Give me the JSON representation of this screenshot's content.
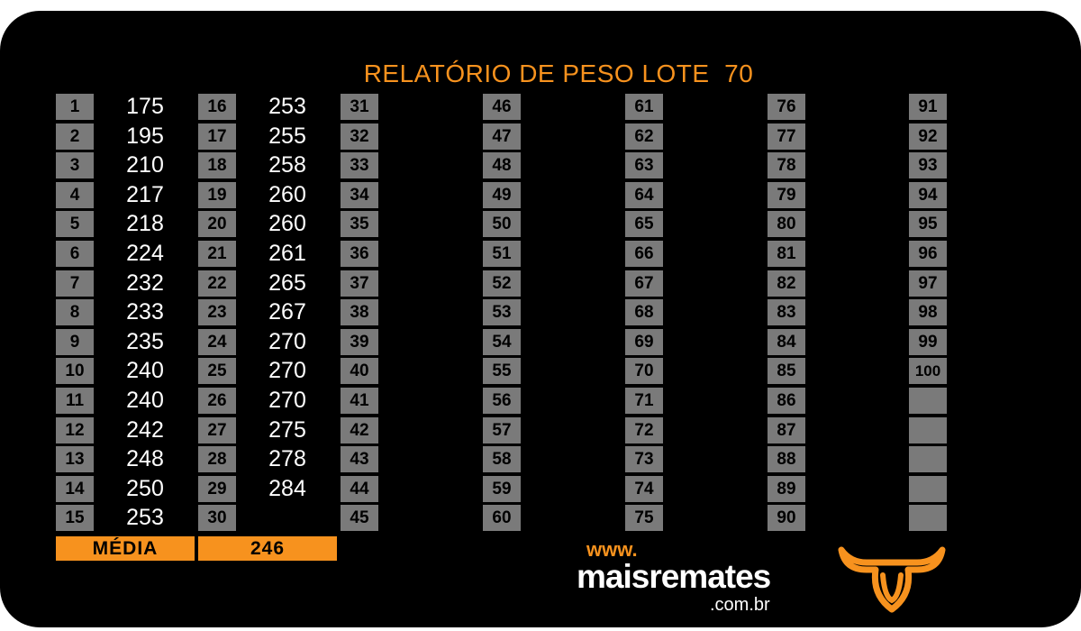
{
  "title": "RELATÓRIO DE PESO LOTE  70",
  "columns": [
    {
      "rows": [
        {
          "n": "1",
          "w": "175"
        },
        {
          "n": "2",
          "w": "195"
        },
        {
          "n": "3",
          "w": "210"
        },
        {
          "n": "4",
          "w": "217"
        },
        {
          "n": "5",
          "w": "218"
        },
        {
          "n": "6",
          "w": "224"
        },
        {
          "n": "7",
          "w": "232"
        },
        {
          "n": "8",
          "w": "233"
        },
        {
          "n": "9",
          "w": "235"
        },
        {
          "n": "10",
          "w": "240"
        },
        {
          "n": "11",
          "w": "240"
        },
        {
          "n": "12",
          "w": "242"
        },
        {
          "n": "13",
          "w": "248"
        },
        {
          "n": "14",
          "w": "250"
        },
        {
          "n": "15",
          "w": "253"
        }
      ]
    },
    {
      "rows": [
        {
          "n": "16",
          "w": "253"
        },
        {
          "n": "17",
          "w": "255"
        },
        {
          "n": "18",
          "w": "258"
        },
        {
          "n": "19",
          "w": "260"
        },
        {
          "n": "20",
          "w": "260"
        },
        {
          "n": "21",
          "w": "261"
        },
        {
          "n": "22",
          "w": "265"
        },
        {
          "n": "23",
          "w": "267"
        },
        {
          "n": "24",
          "w": "270"
        },
        {
          "n": "25",
          "w": "270"
        },
        {
          "n": "26",
          "w": "270"
        },
        {
          "n": "27",
          "w": "275"
        },
        {
          "n": "28",
          "w": "278"
        },
        {
          "n": "29",
          "w": "284"
        },
        {
          "n": "30",
          "w": ""
        }
      ]
    },
    {
      "rows": [
        {
          "n": "31",
          "w": ""
        },
        {
          "n": "32",
          "w": ""
        },
        {
          "n": "33",
          "w": ""
        },
        {
          "n": "34",
          "w": ""
        },
        {
          "n": "35",
          "w": ""
        },
        {
          "n": "36",
          "w": ""
        },
        {
          "n": "37",
          "w": ""
        },
        {
          "n": "38",
          "w": ""
        },
        {
          "n": "39",
          "w": ""
        },
        {
          "n": "40",
          "w": ""
        },
        {
          "n": "41",
          "w": ""
        },
        {
          "n": "42",
          "w": ""
        },
        {
          "n": "43",
          "w": ""
        },
        {
          "n": "44",
          "w": ""
        },
        {
          "n": "45",
          "w": ""
        }
      ]
    },
    {
      "rows": [
        {
          "n": "46",
          "w": ""
        },
        {
          "n": "47",
          "w": ""
        },
        {
          "n": "48",
          "w": ""
        },
        {
          "n": "49",
          "w": ""
        },
        {
          "n": "50",
          "w": ""
        },
        {
          "n": "51",
          "w": ""
        },
        {
          "n": "52",
          "w": ""
        },
        {
          "n": "53",
          "w": ""
        },
        {
          "n": "54",
          "w": ""
        },
        {
          "n": "55",
          "w": ""
        },
        {
          "n": "56",
          "w": ""
        },
        {
          "n": "57",
          "w": ""
        },
        {
          "n": "58",
          "w": ""
        },
        {
          "n": "59",
          "w": ""
        },
        {
          "n": "60",
          "w": ""
        }
      ]
    },
    {
      "rows": [
        {
          "n": "61",
          "w": ""
        },
        {
          "n": "62",
          "w": ""
        },
        {
          "n": "63",
          "w": ""
        },
        {
          "n": "64",
          "w": ""
        },
        {
          "n": "65",
          "w": ""
        },
        {
          "n": "66",
          "w": ""
        },
        {
          "n": "67",
          "w": ""
        },
        {
          "n": "68",
          "w": ""
        },
        {
          "n": "69",
          "w": ""
        },
        {
          "n": "70",
          "w": ""
        },
        {
          "n": "71",
          "w": ""
        },
        {
          "n": "72",
          "w": ""
        },
        {
          "n": "73",
          "w": ""
        },
        {
          "n": "74",
          "w": ""
        },
        {
          "n": "75",
          "w": ""
        }
      ]
    },
    {
      "rows": [
        {
          "n": "76",
          "w": ""
        },
        {
          "n": "77",
          "w": ""
        },
        {
          "n": "78",
          "w": ""
        },
        {
          "n": "79",
          "w": ""
        },
        {
          "n": "80",
          "w": ""
        },
        {
          "n": "81",
          "w": ""
        },
        {
          "n": "82",
          "w": ""
        },
        {
          "n": "83",
          "w": ""
        },
        {
          "n": "84",
          "w": ""
        },
        {
          "n": "85",
          "w": ""
        },
        {
          "n": "86",
          "w": ""
        },
        {
          "n": "87",
          "w": ""
        },
        {
          "n": "88",
          "w": ""
        },
        {
          "n": "89",
          "w": ""
        },
        {
          "n": "90",
          "w": ""
        }
      ]
    },
    {
      "rows": [
        {
          "n": "91",
          "w": ""
        },
        {
          "n": "92",
          "w": ""
        },
        {
          "n": "93",
          "w": ""
        },
        {
          "n": "94",
          "w": ""
        },
        {
          "n": "95",
          "w": ""
        },
        {
          "n": "96",
          "w": ""
        },
        {
          "n": "97",
          "w": ""
        },
        {
          "n": "98",
          "w": ""
        },
        {
          "n": "99",
          "w": ""
        },
        {
          "n": "100",
          "w": ""
        },
        {
          "n": "",
          "w": ""
        },
        {
          "n": "",
          "w": ""
        },
        {
          "n": "",
          "w": ""
        },
        {
          "n": "",
          "w": ""
        },
        {
          "n": "",
          "w": ""
        }
      ]
    }
  ],
  "average": {
    "label": "MÉDIA",
    "value": "246"
  },
  "logo": {
    "www": "www.",
    "name": "maisremates",
    "domain": ".com.br"
  },
  "colors": {
    "accent": "#f7921e",
    "cell": "#7a7a7a",
    "background": "#000000"
  }
}
